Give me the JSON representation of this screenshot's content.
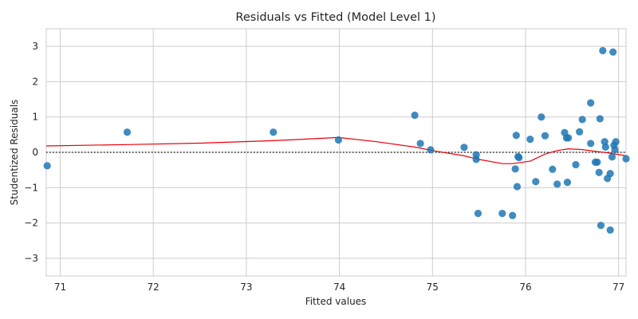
{
  "chart_data": {
    "type": "scatter",
    "title": "Residuals vs Fitted (Model Level 1)",
    "xlabel": "Fitted values",
    "ylabel": "Studentized Residuals",
    "xlim": [
      70.85,
      77.08
    ],
    "ylim": [
      -3.5,
      3.5
    ],
    "xticks": [
      71,
      72,
      73,
      74,
      75,
      76,
      77
    ],
    "yticks": [
      -3,
      -2,
      -1,
      0,
      1,
      2,
      3
    ],
    "grid": true,
    "reference_line_y": 0,
    "colors": {
      "points": "#1f77b4",
      "smooth": "#e8000b",
      "reference": "#000000",
      "grid": "#cccccc"
    },
    "points": [
      {
        "x": 70.86,
        "y": -0.38
      },
      {
        "x": 71.72,
        "y": 0.57
      },
      {
        "x": 73.29,
        "y": 0.57
      },
      {
        "x": 73.99,
        "y": 0.35
      },
      {
        "x": 74.81,
        "y": 1.05
      },
      {
        "x": 74.87,
        "y": 0.25
      },
      {
        "x": 74.98,
        "y": 0.07
      },
      {
        "x": 75.34,
        "y": 0.14
      },
      {
        "x": 75.47,
        "y": -0.07
      },
      {
        "x": 75.47,
        "y": -0.2
      },
      {
        "x": 75.49,
        "y": -1.73
      },
      {
        "x": 75.75,
        "y": -1.73
      },
      {
        "x": 75.86,
        "y": -1.79
      },
      {
        "x": 75.89,
        "y": -0.47
      },
      {
        "x": 75.9,
        "y": 0.48
      },
      {
        "x": 75.91,
        "y": -0.97
      },
      {
        "x": 75.92,
        "y": -0.12
      },
      {
        "x": 75.93,
        "y": -0.15
      },
      {
        "x": 76.05,
        "y": 0.37
      },
      {
        "x": 76.11,
        "y": -0.83
      },
      {
        "x": 76.17,
        "y": 1.0
      },
      {
        "x": 76.21,
        "y": 0.47
      },
      {
        "x": 76.29,
        "y": -0.48
      },
      {
        "x": 76.34,
        "y": -0.9
      },
      {
        "x": 76.42,
        "y": 0.56
      },
      {
        "x": 76.44,
        "y": 0.41
      },
      {
        "x": 76.45,
        "y": -0.85
      },
      {
        "x": 76.46,
        "y": 0.41
      },
      {
        "x": 76.54,
        "y": -0.35
      },
      {
        "x": 76.58,
        "y": 0.58
      },
      {
        "x": 76.61,
        "y": 0.93
      },
      {
        "x": 76.7,
        "y": 1.4
      },
      {
        "x": 76.7,
        "y": 0.25
      },
      {
        "x": 76.75,
        "y": -0.28
      },
      {
        "x": 76.77,
        "y": -0.28
      },
      {
        "x": 76.79,
        "y": -0.57
      },
      {
        "x": 76.8,
        "y": 0.95
      },
      {
        "x": 76.81,
        "y": -2.07
      },
      {
        "x": 76.83,
        "y": 2.88
      },
      {
        "x": 76.85,
        "y": 0.3
      },
      {
        "x": 76.86,
        "y": 0.15
      },
      {
        "x": 76.88,
        "y": -0.74
      },
      {
        "x": 76.91,
        "y": -0.6
      },
      {
        "x": 76.91,
        "y": -2.2
      },
      {
        "x": 76.93,
        "y": -0.13
      },
      {
        "x": 76.94,
        "y": 2.84
      },
      {
        "x": 76.95,
        "y": 0.2
      },
      {
        "x": 76.96,
        "y": 0.08
      },
      {
        "x": 76.97,
        "y": 0.3
      },
      {
        "x": 77.08,
        "y": -0.18
      }
    ],
    "smooth_line": [
      {
        "x": 70.85,
        "y": 0.18
      },
      {
        "x": 71.72,
        "y": 0.22
      },
      {
        "x": 72.5,
        "y": 0.26
      },
      {
        "x": 73.29,
        "y": 0.33
      },
      {
        "x": 73.99,
        "y": 0.42
      },
      {
        "x": 74.4,
        "y": 0.3
      },
      {
        "x": 74.81,
        "y": 0.15
      },
      {
        "x": 75.0,
        "y": 0.05
      },
      {
        "x": 75.34,
        "y": -0.1
      },
      {
        "x": 75.5,
        "y": -0.2
      },
      {
        "x": 75.75,
        "y": -0.32
      },
      {
        "x": 75.86,
        "y": -0.32
      },
      {
        "x": 76.05,
        "y": -0.25
      },
      {
        "x": 76.21,
        "y": -0.05
      },
      {
        "x": 76.34,
        "y": 0.05
      },
      {
        "x": 76.46,
        "y": 0.1
      },
      {
        "x": 76.6,
        "y": 0.08
      },
      {
        "x": 76.75,
        "y": 0.03
      },
      {
        "x": 76.9,
        "y": -0.02
      },
      {
        "x": 77.08,
        "y": -0.1
      }
    ]
  }
}
